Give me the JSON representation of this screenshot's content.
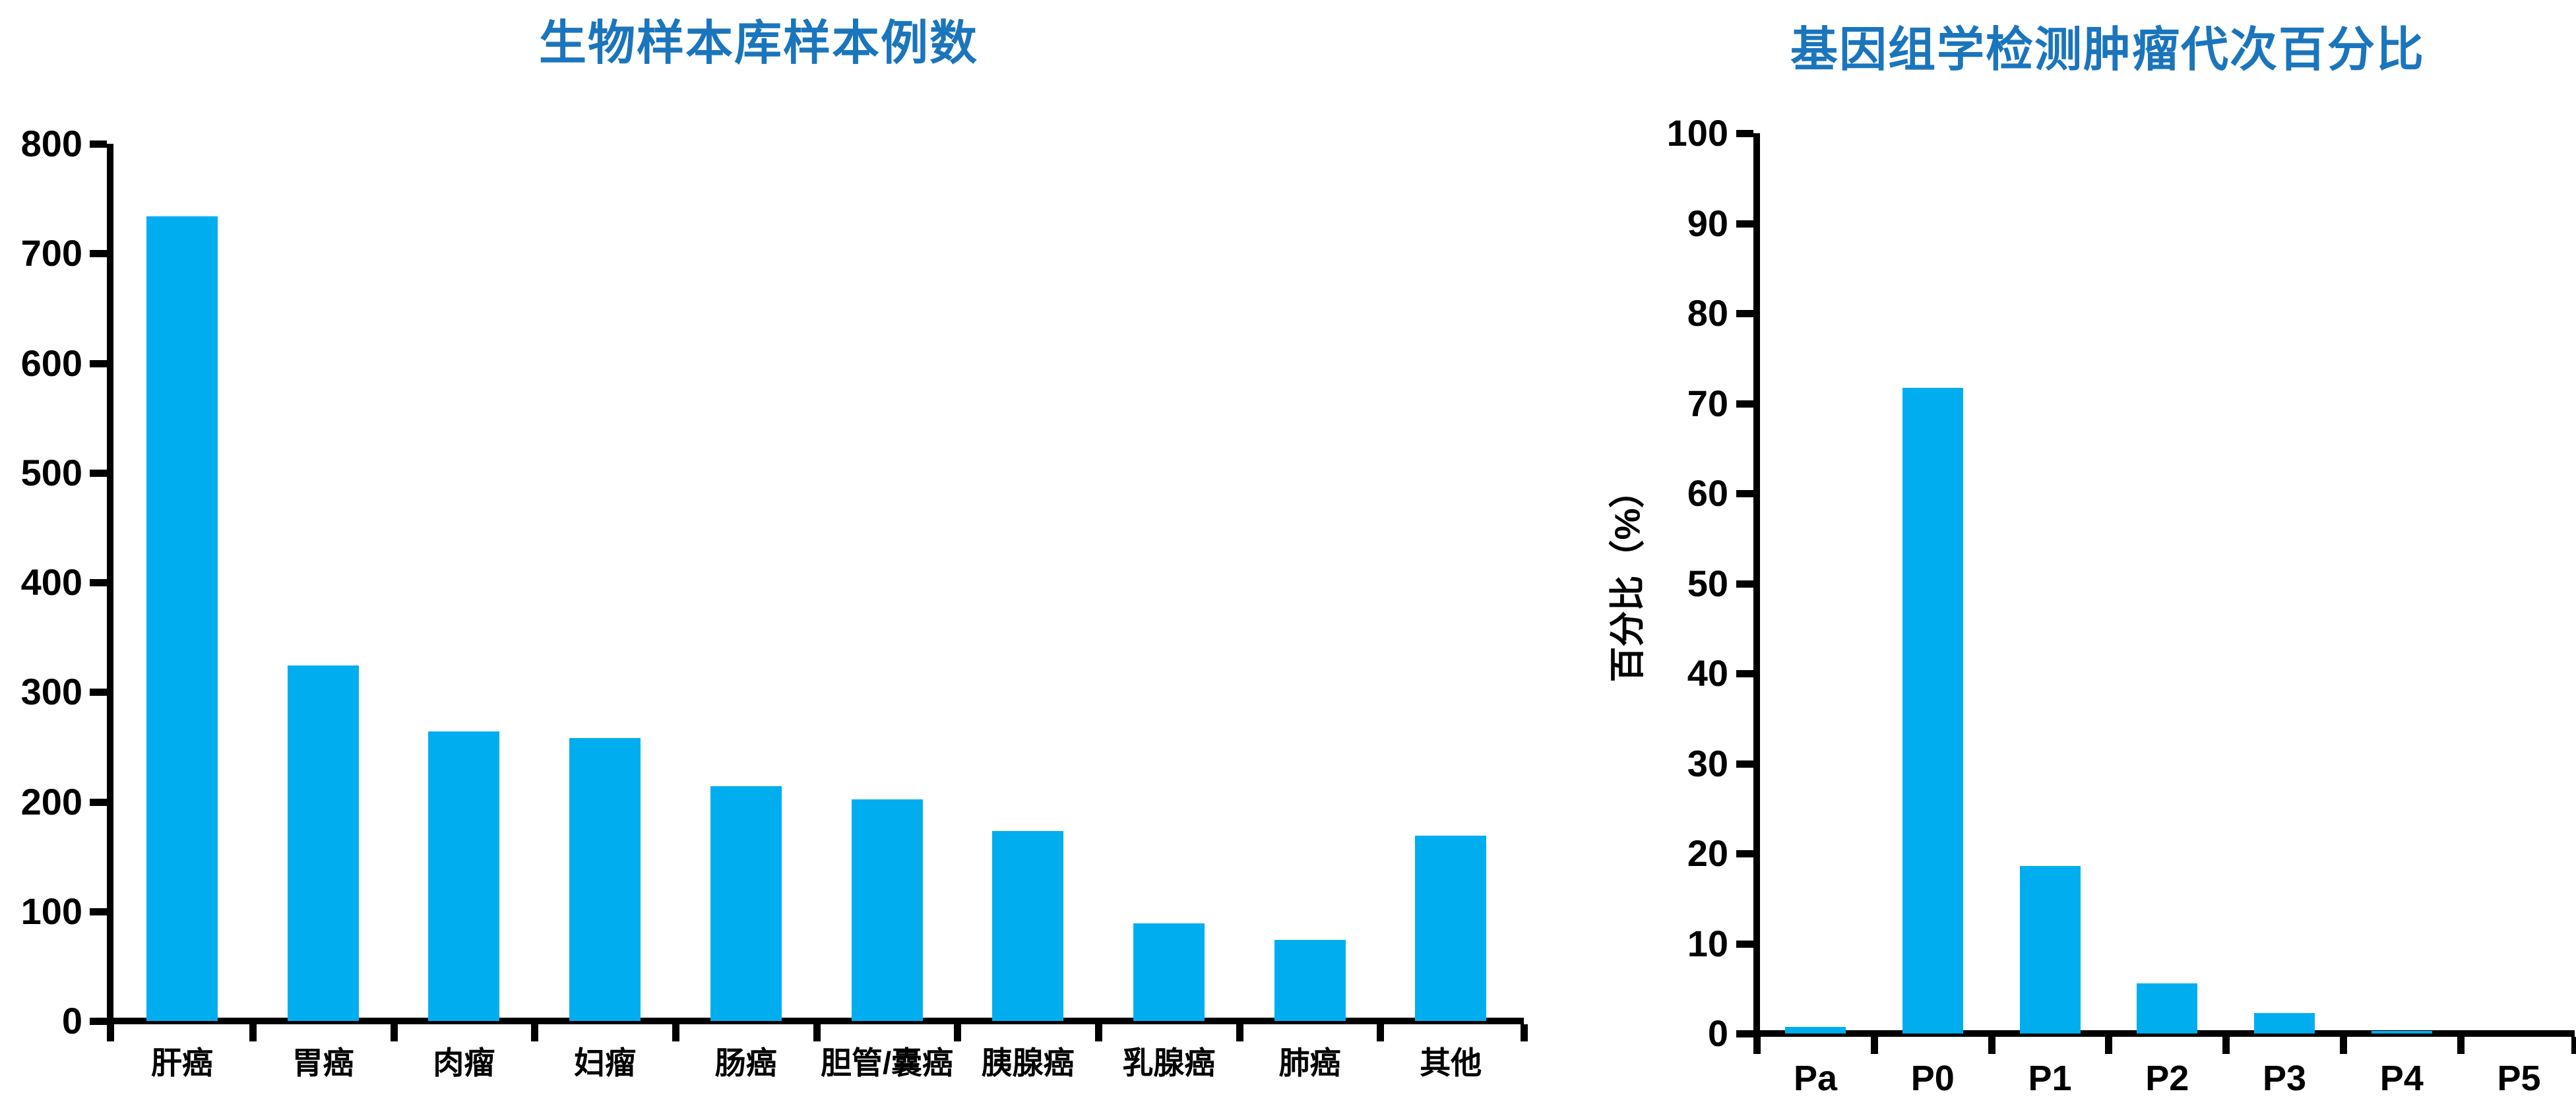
{
  "page": {
    "background_color": "#ffffff",
    "title_color": "#1B75BC",
    "axis_color": "#000000",
    "bar_color": "#00AEEF"
  },
  "chart_data": [
    {
      "type": "bar",
      "title": "生物样本库样本例数",
      "categories": [
        "肝癌",
        "胃癌",
        "肉瘤",
        "妇瘤",
        "肠癌",
        "胆管/囊癌",
        "胰腺癌",
        "乳腺癌",
        "肺癌",
        "其他"
      ],
      "values": [
        734,
        324,
        264,
        258,
        214,
        202,
        173,
        89,
        74,
        169
      ],
      "xlabel": "",
      "ylabel": "",
      "ylim": [
        0,
        800
      ],
      "ytick_step": 100,
      "yticks": [
        0,
        100,
        200,
        300,
        400,
        500,
        600,
        700,
        800
      ],
      "grid": false,
      "legend": false,
      "bar_color": "#00AEEF"
    },
    {
      "type": "bar",
      "title": "基因组学检测肿瘤代次百分比",
      "categories": [
        "Pa",
        "P0",
        "P1",
        "P2",
        "P3",
        "P4",
        "P5"
      ],
      "values": [
        0.7,
        71.7,
        18.6,
        5.6,
        2.3,
        0.3,
        0
      ],
      "xlabel": "",
      "ylabel": "百分比（%）",
      "ylim": [
        0,
        100
      ],
      "ytick_step": 10,
      "yticks": [
        0,
        10,
        20,
        30,
        40,
        50,
        60,
        70,
        80,
        90,
        100
      ],
      "grid": false,
      "legend": false,
      "bar_color": "#00AEEF"
    }
  ]
}
